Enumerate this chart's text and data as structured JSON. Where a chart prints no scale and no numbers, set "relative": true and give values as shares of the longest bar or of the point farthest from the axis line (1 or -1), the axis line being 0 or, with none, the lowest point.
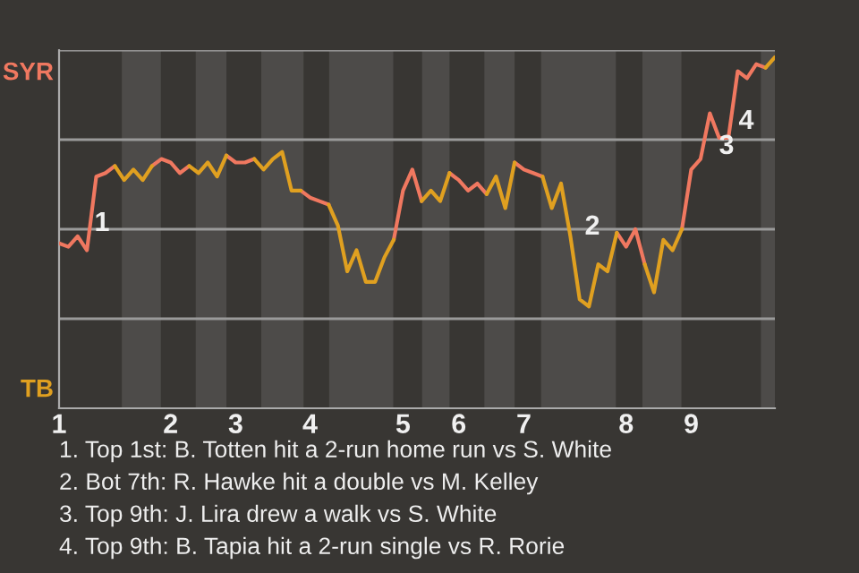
{
  "chart_data": {
    "type": "line",
    "relative": true,
    "categories": [
      "1",
      null,
      null,
      null,
      null,
      null,
      null,
      null,
      null,
      null,
      null,
      null,
      "2",
      null,
      null,
      null,
      null,
      null,
      null,
      "3",
      null,
      null,
      null,
      null,
      null,
      null,
      null,
      "4",
      null,
      null,
      null,
      null,
      null,
      null,
      null,
      null,
      null,
      "5",
      null,
      null,
      null,
      null,
      null,
      "6",
      null,
      null,
      null,
      null,
      null,
      null,
      "7",
      null,
      null,
      null,
      null,
      null,
      null,
      null,
      null,
      null,
      null,
      "8",
      null,
      null,
      null,
      null,
      null,
      null,
      "9",
      null,
      null,
      null,
      null,
      null,
      null,
      null,
      null,
      null
    ],
    "series": [
      {
        "color": "#f07860",
        "values": [
          0.47,
          0.46,
          0.49,
          0.45,
          0.66,
          0.67,
          0.69,
          null,
          null,
          null,
          0.69,
          0.71,
          0.7,
          0.67,
          0.69,
          null,
          null,
          null,
          0.72,
          0.7,
          0.7,
          0.71,
          null,
          null,
          null,
          null,
          0.62,
          0.6,
          0.59,
          0.58,
          null,
          null,
          null,
          null,
          null,
          null,
          0.48,
          0.62,
          0.68,
          0.59,
          null,
          null,
          0.67,
          0.65,
          0.62,
          0.64,
          0.61,
          null,
          null,
          0.7,
          0.68,
          0.67,
          0.66,
          null,
          null,
          null,
          null,
          null,
          null,
          null,
          0.5,
          0.46,
          0.51,
          0.41,
          null,
          null,
          null,
          0.51,
          0.68,
          0.71,
          0.84,
          0.77,
          0.77,
          0.96,
          0.94,
          0.98,
          0.97,
          null
        ]
      },
      {
        "color": "#e0a020",
        "values": [
          null,
          null,
          null,
          null,
          null,
          null,
          0.69,
          0.65,
          0.68,
          0.65,
          0.69,
          null,
          null,
          null,
          0.69,
          0.67,
          0.7,
          0.66,
          0.72,
          null,
          null,
          0.71,
          0.68,
          0.71,
          0.73,
          0.62,
          0.62,
          null,
          null,
          0.58,
          0.52,
          0.39,
          0.45,
          0.36,
          0.36,
          0.43,
          0.48,
          null,
          null,
          0.59,
          0.62,
          0.59,
          0.67,
          null,
          null,
          null,
          0.61,
          0.66,
          0.57,
          0.7,
          null,
          null,
          0.66,
          0.57,
          0.64,
          0.49,
          0.31,
          0.29,
          0.41,
          0.39,
          0.5,
          null,
          null,
          0.41,
          0.33,
          0.48,
          0.45,
          0.51,
          null,
          null,
          null,
          null,
          null,
          null,
          null,
          null,
          0.97,
          1
        ]
      }
    ],
    "marker": "none",
    "line_style": "solid",
    "grid": "y",
    "annotations": [
      "SYR",
      "TB",
      "1",
      "2",
      "3",
      "4",
      "1. Top 1st: B. Totten hit a 2-run home run vs S. White",
      "2. Bot 7th: R. Hawke hit a double vs M. Kelley",
      "3. Top 9th: J. Lira drew a walk vs S. White",
      "4. Top 9th: B. Tapia hit a 2-run single vs R. Rorie"
    ]
  }
}
